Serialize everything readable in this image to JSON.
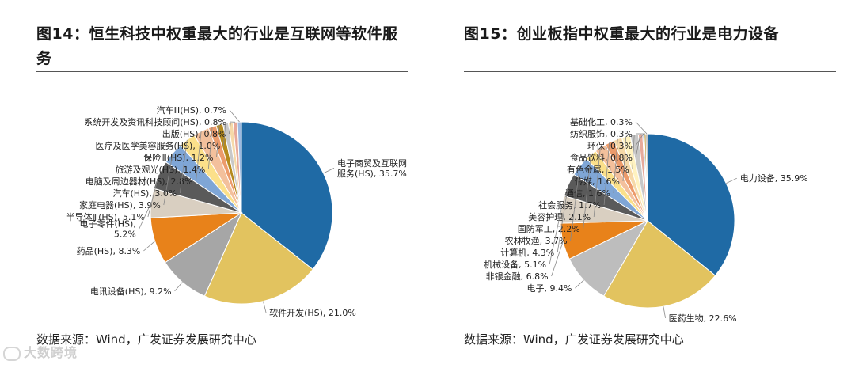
{
  "watermark": "大数跨境",
  "charts": [
    {
      "title": "图14：恒生科技中权重最大的行业是互联网等软件服务",
      "source": "数据来源：Wind，广发证券发展研究中心"
    },
    {
      "title": "图15：创业板指中权重最大的行业是电力设备",
      "source": "数据来源：Wind，广发证券发展研究中心"
    }
  ],
  "chart_data": [
    {
      "type": "pie",
      "title": "图14：恒生科技中权重最大的行业是互联网等软件服务",
      "slices": [
        {
          "label": "电子商贸及互联网服务(HS)",
          "value": 35.7,
          "display": "电子商贸及互联网\n服务(HS), 35.7%",
          "color": "#1f6aa5"
        },
        {
          "label": "软件开发(HS)",
          "value": 21.0,
          "display": "软件开发(HS), 21.0%",
          "color": "#e2c35f"
        },
        {
          "label": "电讯设备(HS)",
          "value": 9.2,
          "display": "电讯设备(HS), 9.2%",
          "color": "#a6a6a6"
        },
        {
          "label": "药品(HS)",
          "value": 8.3,
          "display": "药品(HS), 8.3%",
          "color": "#e8821a"
        },
        {
          "label": "电子零件(HS)",
          "value": 5.2,
          "display": "电子零件(HS),\n5.2%",
          "color": "#d9cfc1"
        },
        {
          "label": "半导体Ⅲ(HS)",
          "value": 5.1,
          "display": "半导体Ⅲ(HS), 5.1%",
          "color": "#5a5a5a"
        },
        {
          "label": "家庭电器(HS)",
          "value": 3.9,
          "display": "家庭电器(HS), 3.9%",
          "color": "#7fa6d6"
        },
        {
          "label": "汽车(HS)",
          "value": 3.0,
          "display": "汽车(HS), 3.0%",
          "color": "#fbe08a"
        },
        {
          "label": "电脑及周边器材(HS)",
          "value": 2.8,
          "display": "电脑及周边器材(HS), 2.8%",
          "color": "#f3c09c"
        },
        {
          "label": "旅游及观光(HS)",
          "value": 1.4,
          "display": "旅游及观光(HS), 1.4%",
          "color": "#ec9b6b"
        },
        {
          "label": "保险Ⅲ(HS)",
          "value": 1.2,
          "display": "保险Ⅲ(HS), 1.2%",
          "color": "#b58a1d"
        },
        {
          "label": "医疗及医学美容服务(HS)",
          "value": 1.0,
          "display": "医疗及医学美容服务(HS), 1.0%",
          "color": "#c8c8c8"
        },
        {
          "label": "出版(HS)",
          "value": 0.8,
          "display": "出版(HS), 0.8%",
          "color": "#f6d9a8"
        },
        {
          "label": "系统开发及资讯科技顾问(HS)",
          "value": 0.8,
          "display": "系统开发及资讯科技顾问(HS), 0.8%",
          "color": "#e7a99a"
        },
        {
          "label": "汽车Ⅲ(HS)",
          "value": 0.7,
          "display": "汽车Ⅲ(HS), 0.7%",
          "color": "#9db9e0"
        }
      ]
    },
    {
      "type": "pie",
      "title": "图15：创业板指中权重最大的行业是电力设备",
      "slices": [
        {
          "label": "电力设备",
          "value": 35.9,
          "display": "电力设备, 35.9%",
          "color": "#1f6aa5"
        },
        {
          "label": "医药生物",
          "value": 22.6,
          "display": "医药生物, 22.6%",
          "color": "#e2c35f"
        },
        {
          "label": "电子",
          "value": 9.4,
          "display": "电子, 9.4%",
          "color": "#bdbdbd"
        },
        {
          "label": "非银金融",
          "value": 6.8,
          "display": "非银金融, 6.8%",
          "color": "#e8821a"
        },
        {
          "label": "机械设备",
          "value": 5.1,
          "display": "机械设备, 5.1%",
          "color": "#d9cfc1"
        },
        {
          "label": "计算机",
          "value": 4.3,
          "display": "计算机, 4.3%",
          "color": "#5a5a5a"
        },
        {
          "label": "农林牧渔",
          "value": 3.7,
          "display": "农林牧渔, 3.7%",
          "color": "#7fa6d6"
        },
        {
          "label": "国防军工",
          "value": 2.2,
          "display": "国防军工, 2.2%",
          "color": "#fbe08a"
        },
        {
          "label": "美容护理",
          "value": 2.1,
          "display": "美容护理, 2.1%",
          "color": "#f3c09c"
        },
        {
          "label": "社会服务",
          "value": 1.7,
          "display": "社会服务, 1.7%",
          "color": "#ec9b6b"
        },
        {
          "label": "通信",
          "value": 1.6,
          "display": "通信, 1.6%",
          "color": "#f6d9a8"
        },
        {
          "label": "传媒",
          "value": 1.6,
          "display": "传媒, 1.6%",
          "color": "#fff2c0"
        },
        {
          "label": "有色金属",
          "value": 1.5,
          "display": "有色金属, 1.5%",
          "color": "#c8c8c8"
        },
        {
          "label": "食品饮料",
          "value": 0.8,
          "display": "食品饮料, 0.8%",
          "color": "#e7a99a"
        },
        {
          "label": "环保",
          "value": 0.3,
          "display": "环保, 0.3%",
          "color": "#9db9e0"
        },
        {
          "label": "纺织服饰",
          "value": 0.3,
          "display": "纺织服饰, 0.3%",
          "color": "#b58a1d"
        },
        {
          "label": "基础化工",
          "value": 0.3,
          "display": "基础化工, 0.3%",
          "color": "#8c8c8c"
        }
      ]
    }
  ]
}
